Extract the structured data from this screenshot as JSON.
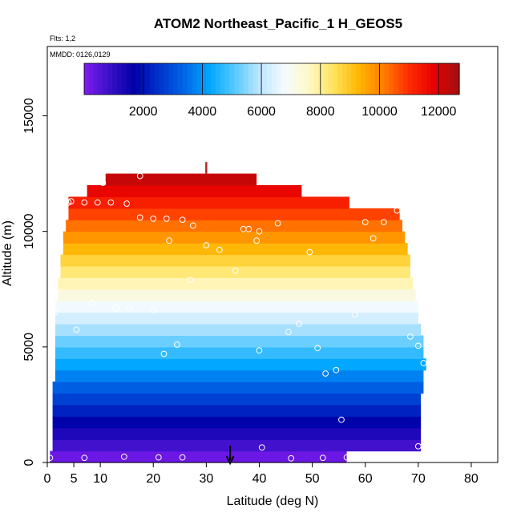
{
  "chart_data": {
    "type": "heatmap",
    "title": "ATOM2 Northeast_Pacific_1 H_GEOS5",
    "flights_label": "Flts: 1,2",
    "mmdd_label": "MMDD: 0126,0129",
    "xlabel": "Latitude (deg N)",
    "ylabel": "Altitude (m)",
    "xlim": [
      0,
      85
    ],
    "ylim": [
      0,
      18000
    ],
    "x_ticks": [
      0,
      5,
      10,
      20,
      30,
      40,
      50,
      60,
      70,
      80
    ],
    "x_tick_labels": [
      "0",
      "5",
      "10",
      "20",
      "30",
      "40",
      "50",
      "60",
      "70",
      "80"
    ],
    "y_ticks": [
      0,
      5000,
      10000,
      15000
    ],
    "y_tick_labels": [
      "0",
      "5000",
      "10000",
      "15000"
    ],
    "colorbar": {
      "range": [
        0,
        12700
      ],
      "ticks": [
        2000,
        4000,
        6000,
        8000,
        10000,
        12000
      ],
      "tick_labels": [
        "2000",
        "4000",
        "6000",
        "8000",
        "10000",
        "12000"
      ],
      "colors": [
        "#7f1cf0",
        "#3a10c8",
        "#0000a8",
        "#0033cc",
        "#0066e6",
        "#00a6ff",
        "#55c8ff",
        "#bde6ff",
        "#f4fbff",
        "#fff8c8",
        "#ffe25a",
        "#ffb400",
        "#ff7a00",
        "#ff2a00",
        "#e60000",
        "#a01010"
      ]
    },
    "field_layers": [
      {
        "alt_bottom": 0,
        "alt_top": 500,
        "lat_start": 0.5,
        "lat_end": 56.5
      },
      {
        "alt_bottom": 500,
        "alt_top": 1000,
        "lat_start": 1,
        "lat_end": 70.5
      },
      {
        "alt_bottom": 1000,
        "alt_top": 1500,
        "lat_start": 1,
        "lat_end": 70.5
      },
      {
        "alt_bottom": 1500,
        "alt_top": 2000,
        "lat_start": 1,
        "lat_end": 70.5
      },
      {
        "alt_bottom": 2000,
        "alt_top": 2500,
        "lat_start": 1,
        "lat_end": 70.5
      },
      {
        "alt_bottom": 2500,
        "alt_top": 3000,
        "lat_start": 1,
        "lat_end": 70.5
      },
      {
        "alt_bottom": 3000,
        "alt_top": 3500,
        "lat_start": 1,
        "lat_end": 71
      },
      {
        "alt_bottom": 3500,
        "alt_top": 4000,
        "lat_start": 1.5,
        "lat_end": 71
      },
      {
        "alt_bottom": 4000,
        "alt_top": 4500,
        "lat_start": 1.5,
        "lat_end": 71.5
      },
      {
        "alt_bottom": 4500,
        "alt_top": 5000,
        "lat_start": 1.5,
        "lat_end": 71
      },
      {
        "alt_bottom": 5000,
        "alt_top": 5500,
        "lat_start": 1.5,
        "lat_end": 71
      },
      {
        "alt_bottom": 5500,
        "alt_top": 6000,
        "lat_start": 1.5,
        "lat_end": 70.5
      },
      {
        "alt_bottom": 6000,
        "alt_top": 6500,
        "lat_start": 1.5,
        "lat_end": 70
      },
      {
        "alt_bottom": 6500,
        "alt_top": 7000,
        "lat_start": 1.5,
        "lat_end": 70
      },
      {
        "alt_bottom": 7000,
        "alt_top": 7500,
        "lat_start": 2,
        "lat_end": 69.5
      },
      {
        "alt_bottom": 7500,
        "alt_top": 8000,
        "lat_start": 2,
        "lat_end": 69
      },
      {
        "alt_bottom": 8000,
        "alt_top": 8500,
        "lat_start": 2.5,
        "lat_end": 68.5
      },
      {
        "alt_bottom": 8500,
        "alt_top": 9000,
        "lat_start": 2.5,
        "lat_end": 68.5
      },
      {
        "alt_bottom": 9000,
        "alt_top": 9500,
        "lat_start": 3,
        "lat_end": 68
      },
      {
        "alt_bottom": 9500,
        "alt_top": 10000,
        "lat_start": 3,
        "lat_end": 67.5
      },
      {
        "alt_bottom": 10000,
        "alt_top": 10500,
        "lat_start": 3.5,
        "lat_end": 67
      },
      {
        "alt_bottom": 10500,
        "alt_top": 11000,
        "lat_start": 4,
        "lat_end": 66.5
      },
      {
        "alt_bottom": 11000,
        "alt_top": 11500,
        "lat_start": 4,
        "lat_end": 57
      },
      {
        "alt_bottom": 11500,
        "alt_top": 12000,
        "lat_start": 7.5,
        "lat_end": 48
      },
      {
        "alt_bottom": 12000,
        "alt_top": 12500,
        "lat_start": 11,
        "lat_end": 39.5
      }
    ],
    "observations": [
      {
        "lat": 0.5,
        "alt": 200
      },
      {
        "lat": 7,
        "alt": 200
      },
      {
        "lat": 14.5,
        "alt": 250
      },
      {
        "lat": 21,
        "alt": 220
      },
      {
        "lat": 25.5,
        "alt": 220
      },
      {
        "lat": 46,
        "alt": 180
      },
      {
        "lat": 52,
        "alt": 200
      },
      {
        "lat": 56.5,
        "alt": 220
      },
      {
        "lat": 40.5,
        "alt": 650
      },
      {
        "lat": 70,
        "alt": 700
      },
      {
        "lat": 55.5,
        "alt": 1850
      },
      {
        "lat": 52.5,
        "alt": 3850
      },
      {
        "lat": 54.5,
        "alt": 4000
      },
      {
        "lat": 71,
        "alt": 4300
      },
      {
        "lat": 22,
        "alt": 4700
      },
      {
        "lat": 24.5,
        "alt": 5100
      },
      {
        "lat": 40,
        "alt": 4850
      },
      {
        "lat": 51,
        "alt": 4950
      },
      {
        "lat": 70,
        "alt": 5050
      },
      {
        "lat": 68.5,
        "alt": 5450
      },
      {
        "lat": 45.5,
        "alt": 5650
      },
      {
        "lat": 47.5,
        "alt": 6000
      },
      {
        "lat": 5.5,
        "alt": 5750
      },
      {
        "lat": 1.5,
        "alt": 6500
      },
      {
        "lat": 8.5,
        "alt": 6900
      },
      {
        "lat": 13,
        "alt": 6700
      },
      {
        "lat": 15.5,
        "alt": 6700
      },
      {
        "lat": 20,
        "alt": 6600
      },
      {
        "lat": 58,
        "alt": 6400
      },
      {
        "lat": 27,
        "alt": 7900
      },
      {
        "lat": 35.5,
        "alt": 8300
      },
      {
        "lat": 49.5,
        "alt": 9100
      },
      {
        "lat": 30,
        "alt": 9400
      },
      {
        "lat": 32.5,
        "alt": 9200
      },
      {
        "lat": 39.5,
        "alt": 9600
      },
      {
        "lat": 23,
        "alt": 9600
      },
      {
        "lat": 61.5,
        "alt": 9700
      },
      {
        "lat": 37,
        "alt": 10100
      },
      {
        "lat": 38,
        "alt": 10100
      },
      {
        "lat": 40,
        "alt": 10000
      },
      {
        "lat": 43.5,
        "alt": 10350
      },
      {
        "lat": 60,
        "alt": 10400
      },
      {
        "lat": 63.5,
        "alt": 10400
      },
      {
        "lat": 27.5,
        "alt": 10250
      },
      {
        "lat": 25.5,
        "alt": 10500
      },
      {
        "lat": 22.5,
        "alt": 10550
      },
      {
        "lat": 20,
        "alt": 10550
      },
      {
        "lat": 17.5,
        "alt": 10600
      },
      {
        "lat": 66,
        "alt": 10900
      },
      {
        "lat": 4,
        "alt": 11250
      },
      {
        "lat": 4.5,
        "alt": 11300
      },
      {
        "lat": 7,
        "alt": 11250
      },
      {
        "lat": 9.5,
        "alt": 11250
      },
      {
        "lat": 12,
        "alt": 11250
      },
      {
        "lat": 15,
        "alt": 11200
      },
      {
        "lat": 10.5,
        "alt": 12100
      },
      {
        "lat": 17.5,
        "alt": 12400
      }
    ],
    "arrow_marker_lat": 34.5,
    "column_marker": {
      "lat": 30,
      "alt_bottom": 12500,
      "alt_top": 13000
    }
  }
}
